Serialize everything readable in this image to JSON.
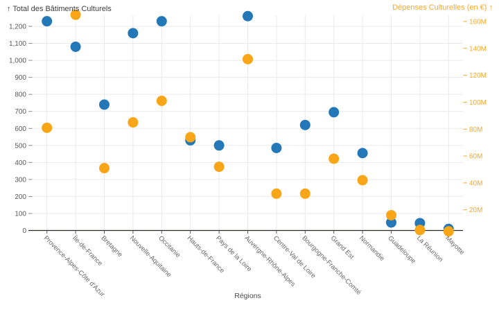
{
  "chart_data": {
    "type": "scatter",
    "dual_axis": true,
    "left_axis_title": "↑ Total des Bâtiments Culturels",
    "right_axis_title": "Dépenses Culturelles (en €) ↑",
    "x_axis_title": "Régions",
    "categories": [
      "Provence-Alpes-Côte d'Azur",
      "Île-de-France",
      "Bretagne",
      "Nouvelle-Aquitaine",
      "Occitanie",
      "Hauts-de-France",
      "Pays de la Loire",
      "Auvergne-Rhône-Alpes",
      "Centre-Val de Loire",
      "Bourgogne-Franche-Comté",
      "Grand Est",
      "Normandie",
      "Guadeloupe",
      "La Réunion",
      "Mayotte"
    ],
    "series": [
      {
        "name": "Total des Bâtiments Culturels",
        "axis": "left",
        "color": "#2478B8",
        "values": [
          1230,
          1080,
          740,
          1160,
          1230,
          530,
          500,
          1260,
          485,
          620,
          695,
          455,
          47,
          43,
          9
        ]
      },
      {
        "name": "Dépenses Culturelles (en €)",
        "axis": "right",
        "unit": "millions EUR",
        "color": "#F8A618",
        "values": [
          81,
          165,
          51,
          85,
          101,
          74,
          52,
          132,
          32,
          32,
          58,
          42,
          16,
          5,
          4
        ]
      }
    ],
    "left_axis": {
      "tick_labels": [
        "0",
        "100",
        "200",
        "300",
        "400",
        "500",
        "600",
        "700",
        "800",
        "900",
        "1,000",
        "1,100",
        "1,200"
      ],
      "tick_values": [
        0,
        100,
        200,
        300,
        400,
        500,
        600,
        700,
        800,
        900,
        1000,
        1100,
        1200
      ],
      "label_color": "#595959"
    },
    "right_axis": {
      "tick_labels": [
        "20M",
        "40M",
        "60M",
        "80M",
        "100M",
        "120M",
        "140M",
        "160M"
      ],
      "tick_values": [
        20,
        40,
        60,
        80,
        100,
        120,
        140,
        160
      ],
      "label_color": "#F9A825"
    },
    "grid": true,
    "legend": "none",
    "colors": {
      "gridline": "#e9e9e9",
      "axis_line": "#252423",
      "category_label": "#666666"
    }
  }
}
